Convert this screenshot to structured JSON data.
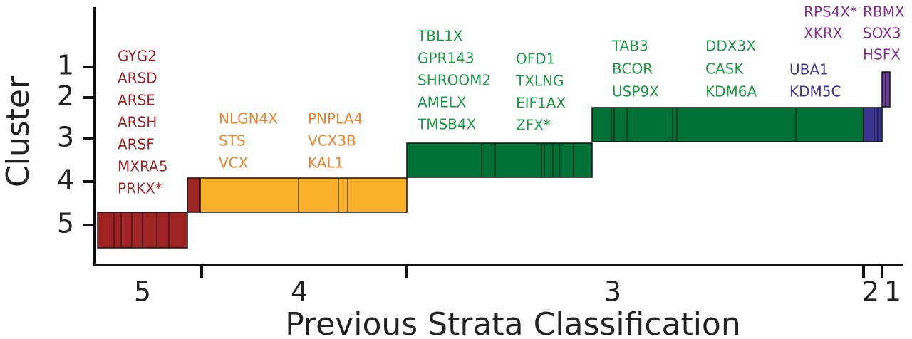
{
  "chart_data": {
    "type": "step-bar",
    "title": "",
    "xlabel": "Previous Strata Classification",
    "ylabel": "Cluster",
    "y_ticks": [
      "1",
      "2",
      "3",
      "4",
      "5"
    ],
    "x_ticks": [
      "5",
      "4",
      "3",
      "2",
      "1"
    ],
    "colors": {
      "red": "#9e2424",
      "orange": "#fbb02c",
      "orange_text": "#f08228",
      "green": "#007035",
      "green_text": "#1c9a46",
      "blue": "#3b3594",
      "purple": "#6a3d9a",
      "purple_text": "#8a2f93"
    },
    "blocks": [
      {
        "name": "block-cluster5-red",
        "cluster": 5,
        "stratum": 5,
        "color": "red"
      },
      {
        "name": "block-cluster4-red",
        "cluster": 4,
        "stratum": 4,
        "color": "red"
      },
      {
        "name": "block-cluster4-orange",
        "cluster": 4,
        "stratum": 4,
        "color": "orange"
      },
      {
        "name": "block-cluster3-green",
        "cluster": 3,
        "stratum": 3,
        "color": "green"
      },
      {
        "name": "block-cluster2-green",
        "cluster": 2,
        "stratum": 3,
        "color": "green"
      },
      {
        "name": "block-cluster2-blue",
        "cluster": 2,
        "stratum": 2,
        "color": "blue"
      },
      {
        "name": "block-cluster1-purple",
        "cluster": 1,
        "stratum": 1,
        "color": "purple"
      }
    ],
    "gene_labels": [
      {
        "name": "genes-red",
        "color": "red",
        "genes": [
          "GYG2",
          "ARSD",
          "ARSE",
          "ARSH",
          "ARSF",
          "MXRA5",
          "PRKX*"
        ]
      },
      {
        "name": "genes-orange-1",
        "color": "orange_text",
        "genes": [
          "NLGN4X",
          "STS",
          "VCX"
        ]
      },
      {
        "name": "genes-orange-2",
        "color": "orange_text",
        "genes": [
          "PNPLA4",
          "VCX3B",
          "KAL1"
        ]
      },
      {
        "name": "genes-green-1",
        "color": "green_text",
        "genes": [
          "TBL1X",
          "GPR143",
          "SHROOM2",
          "AMELX",
          "TMSB4X"
        ]
      },
      {
        "name": "genes-green-2",
        "color": "green_text",
        "genes": [
          "OFD1",
          "TXLNG",
          "EIF1AX",
          "ZFX*"
        ]
      },
      {
        "name": "genes-green-3",
        "color": "green_text",
        "genes": [
          "TAB3",
          "BCOR",
          "USP9X"
        ]
      },
      {
        "name": "genes-green-4",
        "color": "green_text",
        "genes": [
          "DDX3X",
          "CASK",
          "KDM6A"
        ]
      },
      {
        "name": "genes-blue",
        "color": "blue",
        "genes": [
          "UBA1",
          "KDM5C"
        ]
      },
      {
        "name": "genes-purple-1",
        "color": "purple_text",
        "genes": [
          "RPS4X*",
          "XKRX"
        ]
      },
      {
        "name": "genes-purple-2",
        "color": "purple_text",
        "genes": [
          "RBMX",
          "SOX3",
          "HSFX"
        ]
      }
    ]
  }
}
